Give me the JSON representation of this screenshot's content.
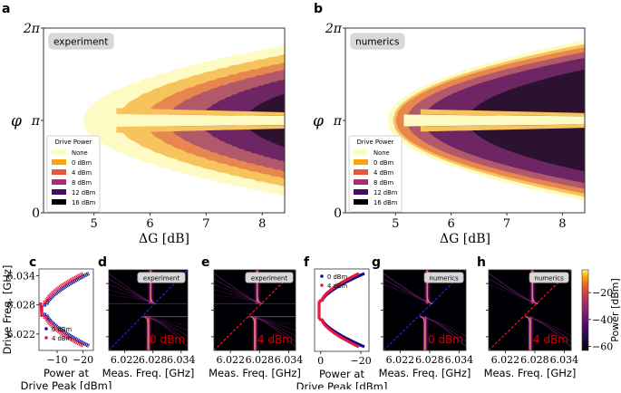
{
  "panel_labels": [
    "a",
    "b",
    "c",
    "d",
    "e",
    "f",
    "g",
    "h"
  ],
  "legend": {
    "title": "Drive Power",
    "entries": [
      {
        "label": "None",
        "color": "#fcfdbf"
      },
      {
        "label": "0 dBm",
        "color": "#fca50a"
      },
      {
        "label": "4 dBm",
        "color": "#e05a3a"
      },
      {
        "label": "8 dBm",
        "color": "#a3306f"
      },
      {
        "label": "12 dBm",
        "color": "#440f62"
      },
      {
        "label": "16 dBm",
        "color": "#000004"
      }
    ]
  },
  "region_colors": {
    "None": "#fdfbc3",
    "0 dBm": "#f7c35c",
    "4 dBm": "#e8864f",
    "8 dBm": "#b1596b",
    "12 dBm": "#6e2563",
    "16 dBm": "#2d1230"
  },
  "chart_data": [
    {
      "id": "a",
      "type": "area",
      "badge": "experiment",
      "xlabel": "ΔG [dB]",
      "ylabel": "φ",
      "xlim": [
        4.1,
        8.4
      ],
      "ylim": [
        0,
        6.283
      ],
      "xticks": [
        5,
        6,
        7,
        8
      ],
      "xtick_labels": [
        "5",
        "6",
        "7",
        "8"
      ],
      "yticks": [
        0,
        3.1416,
        6.283
      ],
      "ytick_labels": [
        "0",
        "π",
        "2π"
      ],
      "regions": [
        {
          "level": "None",
          "onset_dB": 4.8
        },
        {
          "level": "0 dBm",
          "onset_dB": 5.4
        },
        {
          "level": "4 dBm",
          "onset_dB": 5.9
        },
        {
          "level": "8 dBm",
          "onset_dB": 6.3
        },
        {
          "level": "12 dBm",
          "onset_dB": 6.9
        },
        {
          "level": "16 dBm",
          "onset_dB": 7.7
        }
      ],
      "top_cutoff_phi": 5.15
    },
    {
      "id": "b",
      "type": "area",
      "badge": "numerics",
      "xlabel": "ΔG [dB]",
      "ylabel": "φ",
      "xlim": [
        4.1,
        8.4
      ],
      "ylim": [
        0,
        6.283
      ],
      "xticks": [
        5,
        6,
        7,
        8
      ],
      "xtick_labels": [
        "5",
        "6",
        "7",
        "8"
      ],
      "yticks": [
        0,
        3.1416,
        6.283
      ],
      "ytick_labels": [
        "0",
        "π",
        "2π"
      ],
      "regions": [
        {
          "level": "None",
          "onset_dB": 4.85
        },
        {
          "level": "0 dBm",
          "onset_dB": 4.95
        },
        {
          "level": "4 dBm",
          "onset_dB": 5.0
        },
        {
          "level": "8 dBm",
          "onset_dB": 5.2
        },
        {
          "level": "12 dBm",
          "onset_dB": 5.5
        },
        {
          "level": "16 dBm",
          "onset_dB": 6.3
        }
      ]
    },
    {
      "id": "c",
      "type": "scatter",
      "xlabel": "Power at\nDrive Peak [dBm]",
      "ylabel": "Drive Freq. [GHz]",
      "xlim": [
        -3,
        -24
      ],
      "ylim": [
        6.0186,
        6.0354
      ],
      "xticks": [
        -10,
        -20
      ],
      "xtick_labels": [
        "−10",
        "−20"
      ],
      "yticks": [
        6.022,
        6.028,
        6.034
      ],
      "ytick_labels": [
        "6.022",
        "6.028",
        "6.034"
      ],
      "series": [
        {
          "name": "0 dBm",
          "color": "#0a0a8c"
        },
        {
          "name": "4 dBm",
          "color": "#e8173e"
        }
      ]
    },
    {
      "id": "d",
      "type": "heatmap",
      "badge": "experiment",
      "power_label": "0 dBm",
      "line_color": "#1f2bd0",
      "xlabel": "Meas.  Freq.  [GHz]",
      "xticks": [
        6.022,
        6.028,
        6.034
      ],
      "xtick_labels": [
        "6.022",
        "6.028",
        "6.034"
      ],
      "xlim": [
        6.0186,
        6.0354
      ]
    },
    {
      "id": "e",
      "type": "heatmap",
      "badge": "experiment",
      "power_label": "4 dBm",
      "line_color": "#e8173e",
      "xlabel": "Meas.  Freq.  [GHz]",
      "xticks": [
        6.022,
        6.028,
        6.034
      ],
      "xtick_labels": [
        "6.022",
        "6.028",
        "6.034"
      ],
      "xlim": [
        6.0186,
        6.0354
      ]
    },
    {
      "id": "f",
      "type": "line",
      "xlabel": "Power at\nDrive Peak [dBm]",
      "xlim": [
        3,
        -24
      ],
      "xticks": [
        0,
        -20
      ],
      "xtick_labels": [
        "0",
        "−20"
      ],
      "series": [
        {
          "name": "0 dBm",
          "color": "#0a0a8c"
        },
        {
          "name": "4 dBm",
          "color": "#e8173e"
        }
      ]
    },
    {
      "id": "g",
      "type": "heatmap",
      "badge": "numerics",
      "power_label": "0 dBm",
      "line_color": "#1f2bd0",
      "xlabel": "Meas.  Freq.  [GHz]",
      "xticks": [
        6.022,
        6.028,
        6.034
      ],
      "xtick_labels": [
        "6.022",
        "6.028",
        "6.034"
      ],
      "xlim": [
        6.0186,
        6.0354
      ]
    },
    {
      "id": "h",
      "type": "heatmap",
      "badge": "numerics",
      "power_label": "4 dBm",
      "line_color": "#e8173e",
      "xlabel": "Meas.  Freq.  [GHz]",
      "xticks": [
        6.022,
        6.028,
        6.034
      ],
      "xtick_labels": [
        "6.022",
        "6.028",
        "6.034"
      ],
      "xlim": [
        6.0186,
        6.0354
      ]
    }
  ],
  "colorbar": {
    "label": "Power [dBm]",
    "range": [
      -63,
      -3
    ],
    "ticks": [
      -20,
      -40,
      -60
    ],
    "tick_labels": [
      "−20",
      "−40",
      "−60"
    ]
  },
  "label_color_power": "#d40000"
}
